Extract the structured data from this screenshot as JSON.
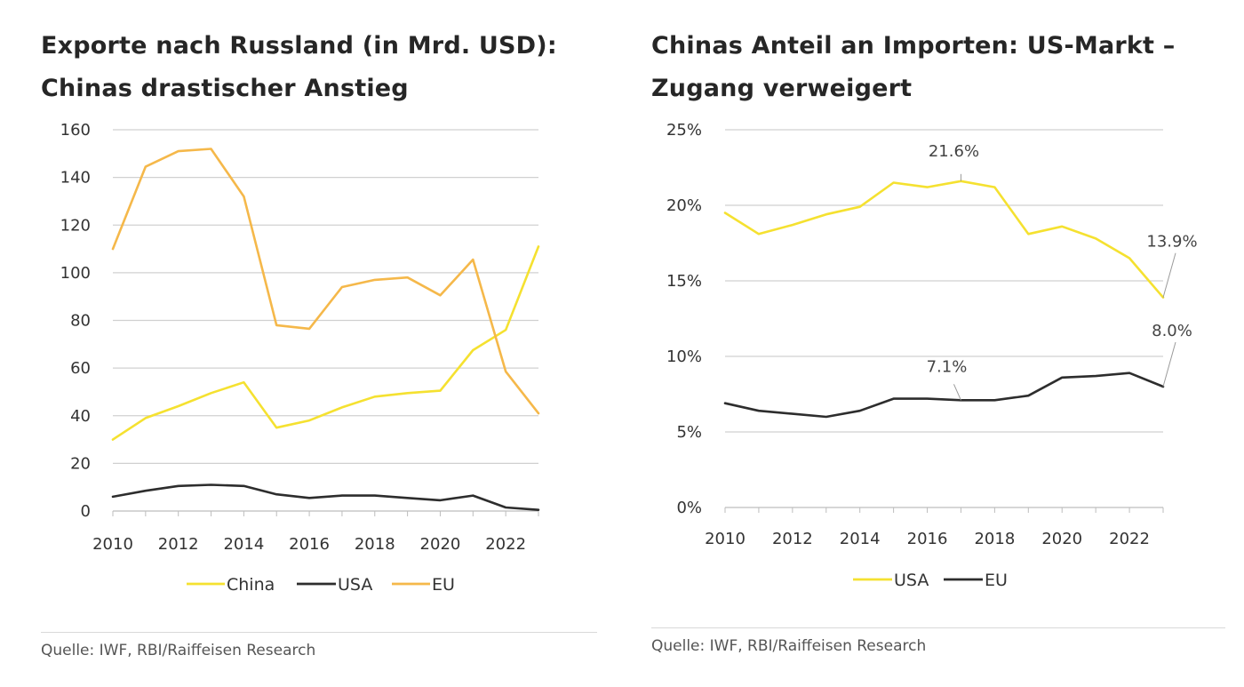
{
  "colors": {
    "china": "#f5e130",
    "usa_series": "#f5e130",
    "usa_line": "#2d2d2d",
    "eu_left": "#f5b84a",
    "eu_right": "#2d2d2d",
    "grid": "#d0d0d0",
    "axis": "#bdbdbd"
  },
  "chart_data": [
    {
      "type": "line",
      "title": "Exporte nach Russland (in Mrd. USD): Chinas drastischer Anstieg",
      "title_lines": [
        "Exporte nach Russland (in Mrd. USD):",
        "Chinas drastischer Anstieg"
      ],
      "x": [
        2010,
        2011,
        2012,
        2013,
        2014,
        2015,
        2016,
        2017,
        2018,
        2019,
        2020,
        2021,
        2022,
        2023
      ],
      "ylim": [
        0,
        160
      ],
      "y_ticks": [
        0,
        20,
        40,
        60,
        80,
        100,
        120,
        140,
        160
      ],
      "x_tick_labels": [
        "2010",
        "2012",
        "2014",
        "2016",
        "2018",
        "2020",
        "2022"
      ],
      "x_tick_values": [
        2010,
        2012,
        2014,
        2016,
        2018,
        2020,
        2022
      ],
      "series": [
        {
          "name": "China",
          "color_key": "china",
          "values": [
            30,
            39,
            44,
            49.5,
            54,
            35,
            38,
            43.5,
            48,
            49.5,
            50.5,
            67.5,
            76,
            111
          ]
        },
        {
          "name": "USA",
          "color_key": "usa_line",
          "values": [
            6,
            8.5,
            10.5,
            11,
            10.5,
            7,
            5.5,
            6.5,
            6.5,
            5.5,
            4.5,
            6.5,
            1.5,
            0.5
          ]
        },
        {
          "name": "EU",
          "color_key": "eu_left",
          "values": [
            110,
            144.5,
            151,
            152,
            132,
            78,
            76.5,
            94,
            97,
            98,
            90.5,
            105.5,
            58.5,
            41
          ]
        }
      ],
      "legend": [
        "China",
        "USA",
        "EU"
      ],
      "grid": true,
      "source": "Quelle: IWF, RBI/Raiffeisen Research"
    },
    {
      "type": "line",
      "title": "Chinas Anteil an Importen: US-Markt – Zugang verweigert",
      "title_lines": [
        "Chinas Anteil an Importen: US-Markt –",
        "Zugang verweigert"
      ],
      "x": [
        2010,
        2011,
        2012,
        2013,
        2014,
        2015,
        2016,
        2017,
        2018,
        2019,
        2020,
        2021,
        2022,
        2023
      ],
      "ylim": [
        0,
        25
      ],
      "y_ticks": [
        0,
        5,
        10,
        15,
        20,
        25
      ],
      "y_tick_labels": [
        "0%",
        "5%",
        "10%",
        "15%",
        "20%",
        "25%"
      ],
      "x_tick_labels": [
        "2010",
        "2012",
        "2014",
        "2016",
        "2018",
        "2020",
        "2022"
      ],
      "x_tick_values": [
        2010,
        2012,
        2014,
        2016,
        2018,
        2020,
        2022
      ],
      "series": [
        {
          "name": "USA",
          "color_key": "usa_series",
          "values": [
            19.5,
            18.1,
            18.7,
            19.4,
            19.9,
            21.5,
            21.2,
            21.6,
            21.2,
            18.1,
            18.6,
            17.8,
            16.5,
            13.9
          ]
        },
        {
          "name": "EU",
          "color_key": "eu_right",
          "values": [
            6.9,
            6.4,
            6.2,
            6.0,
            6.4,
            7.2,
            7.2,
            7.1,
            7.1,
            7.4,
            8.6,
            8.7,
            8.9,
            8.0
          ]
        }
      ],
      "annotations": [
        {
          "text": "21.6%",
          "series": "USA",
          "x": 2017,
          "y": 21.6
        },
        {
          "text": "13.9%",
          "series": "USA",
          "x": 2023,
          "y": 13.9
        },
        {
          "text": "7.1%",
          "series": "EU",
          "x": 2017,
          "y": 7.1
        },
        {
          "text": "8.0%",
          "series": "EU",
          "x": 2023,
          "y": 8.0
        }
      ],
      "legend": [
        "USA",
        "EU"
      ],
      "grid": true,
      "source": "Quelle: IWF, RBI/Raiffeisen Research"
    }
  ]
}
